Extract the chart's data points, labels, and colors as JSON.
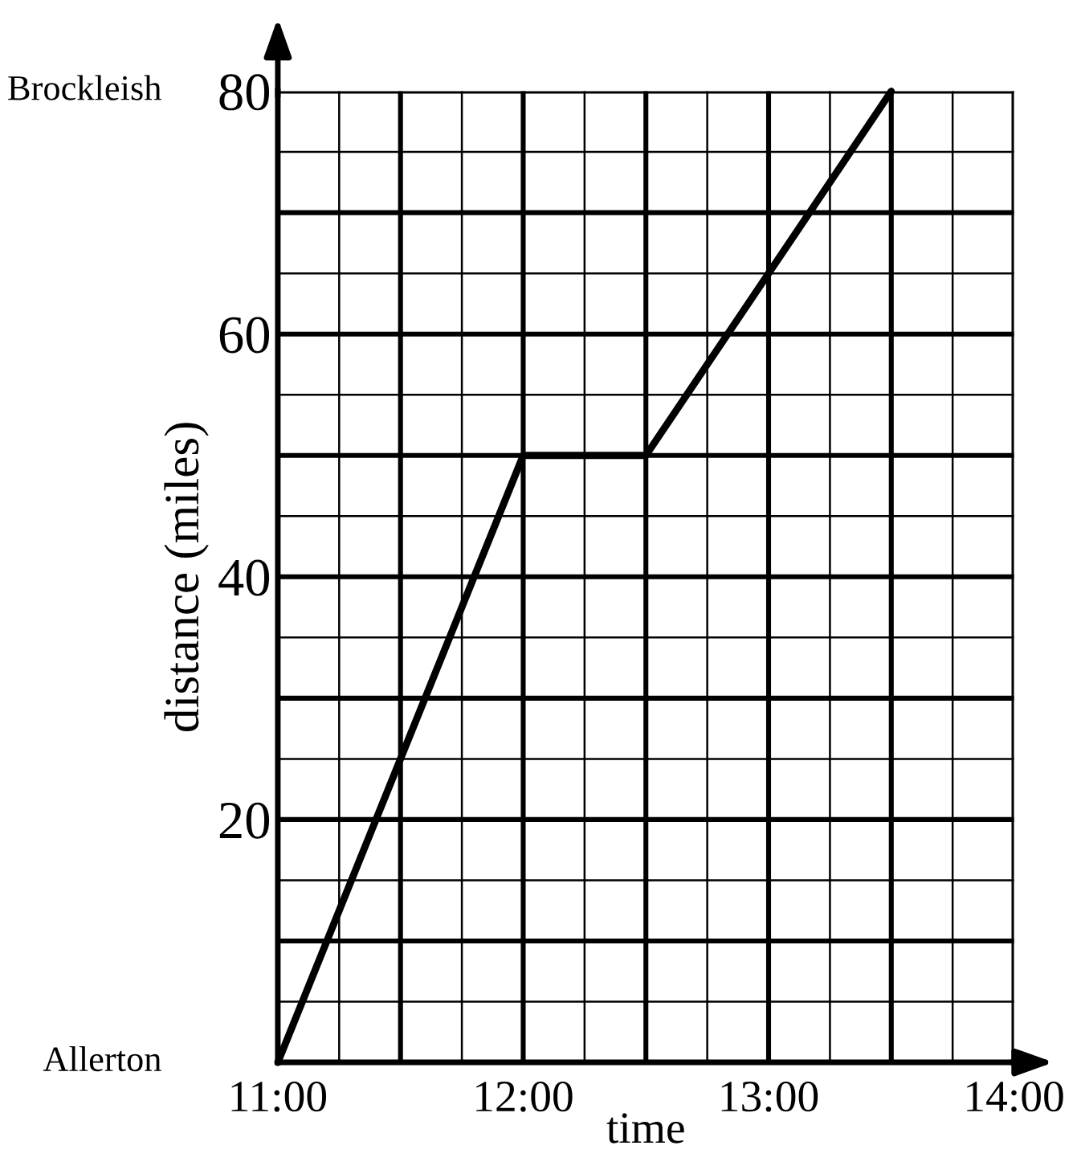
{
  "chart_data": {
    "type": "line",
    "xlabel": "time",
    "ylabel": "distance (miles)",
    "x": [
      11,
      12,
      12.5,
      13.5
    ],
    "series": [
      {
        "color": "#000000",
        "values": [
          0,
          50,
          50,
          80
        ]
      }
    ],
    "xlim": [
      11,
      14
    ],
    "ylim": [
      0,
      80
    ],
    "xticks": [
      {
        "value": 11,
        "label": "11:00"
      },
      {
        "value": 11.5,
        "label": null
      },
      {
        "value": 12,
        "label": "12:00"
      },
      {
        "value": 12.5,
        "label": null
      },
      {
        "value": 13,
        "label": "13:00"
      },
      {
        "value": 13.5,
        "label": null
      },
      {
        "value": 14,
        "label": "14:00"
      }
    ],
    "yticks": [
      {
        "value": 0,
        "label": null
      },
      {
        "value": 10,
        "label": null
      },
      20,
      {
        "value": 30,
        "label": null
      },
      40,
      {
        "value": 50,
        "label": null
      },
      60,
      {
        "value": 70,
        "label": null
      },
      80
    ],
    "annotations": [
      "Brockleish",
      "Allerton"
    ],
    "grid": true,
    "marker": "none",
    "line_style": "solid"
  }
}
